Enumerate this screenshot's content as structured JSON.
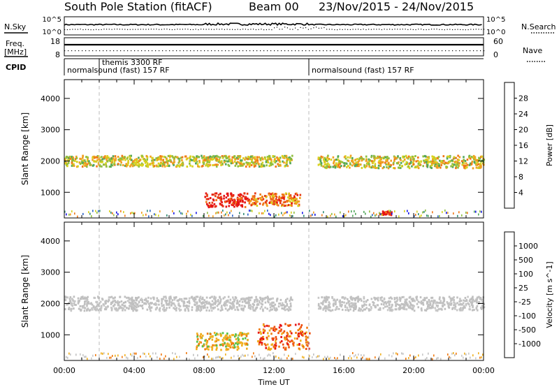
{
  "header": {
    "title": "South Pole Station (fitACF)",
    "beam": "Beam 00",
    "date_range": "23/Nov/2015 - 24/Nov/2015"
  },
  "strip_labels": {
    "n_sky": "N.Sky",
    "n_search": "N.Search",
    "freq_line1": "Freq.",
    "freq_line2": "[MHz]",
    "nave": "Nave",
    "cpid": "CPID"
  },
  "strip_ticks": {
    "noise_top": "10^5",
    "noise_bottom": "10^0",
    "freq_top": "18",
    "freq_bottom": "8",
    "nave_top": "60",
    "nave_bottom": "0"
  },
  "cpid_labels": [
    {
      "text": "themis 3300 RF",
      "start_hour": 2.0,
      "row": 0
    },
    {
      "text": "normalsound (fast) 157 RF",
      "start_hour": 0.0,
      "row": 1
    },
    {
      "text": "normalsound (fast) 157 RF",
      "start_hour": 14.0,
      "row": 1
    }
  ],
  "colors": {
    "power_scale": [
      "#1414e6",
      "#2a62c4",
      "#2f8a73",
      "#52a65a",
      "#8fbf3f",
      "#d7d21e",
      "#f0a020",
      "#f07818",
      "#e63c14",
      "#e61414"
    ],
    "velocity_scale": [
      "#2d3ecf",
      "#2a65b8",
      "#2f8a5a",
      "#55c04a",
      "#c0c0c0",
      "#c8c8c8",
      "#f0b020",
      "#f07a10",
      "#ee5010",
      "#e61414"
    ],
    "grid": "#bbbbbb"
  },
  "chart_data": [
    {
      "type": "heatmap",
      "name": "power-panel",
      "x_range_hours": [
        0,
        24
      ],
      "ylabel": "Slant Range [km]",
      "ylim": [
        180,
        4600
      ],
      "yticks": [
        1000,
        2000,
        3000,
        4000
      ],
      "colorbar": {
        "label": "Power [dB]",
        "ticks": [
          "4",
          "8",
          "12",
          "16",
          "20",
          "24",
          "28"
        ],
        "range": [
          0,
          30
        ]
      },
      "features": [
        {
          "hours": [
            0,
            13
          ],
          "range_km": [
            1850,
            2200
          ],
          "dominant_db": 14
        },
        {
          "hours": [
            14.5,
            24
          ],
          "range_km": [
            1800,
            2200
          ],
          "dominant_db": 14
        },
        {
          "hours": [
            8,
            10.5
          ],
          "range_km": [
            550,
            1000
          ],
          "dominant_db": 27
        },
        {
          "hours": [
            10.5,
            13.5
          ],
          "range_km": [
            600,
            1000
          ],
          "dominant_db": 20
        },
        {
          "hours": [
            18,
            18.7
          ],
          "range_km": [
            300,
            420
          ],
          "dominant_db": 28
        }
      ]
    },
    {
      "type": "heatmap",
      "name": "velocity-panel",
      "x_range_hours": [
        0,
        24
      ],
      "xlabel": "Time UT",
      "xticks": [
        "00:00",
        "04:00",
        "08:00",
        "12:00",
        "16:00",
        "20:00",
        "00:00"
      ],
      "ylabel": "Slant Range [km]",
      "ylim": [
        180,
        4600
      ],
      "yticks": [
        1000,
        2000,
        3000,
        4000
      ],
      "colorbar": {
        "label": "Velocity [m s^-1]",
        "ticks": [
          "1000",
          "500",
          "100",
          "25",
          "-25",
          "-100",
          "-500",
          "-1000"
        ]
      },
      "features": [
        {
          "hours": [
            0,
            13
          ],
          "range_km": [
            1800,
            2250
          ],
          "dominant_velocity": 0
        },
        {
          "hours": [
            14.5,
            24
          ],
          "range_km": [
            1800,
            2250
          ],
          "dominant_velocity": 0
        },
        {
          "hours": [
            7.5,
            10.5
          ],
          "range_km": [
            550,
            1100
          ],
          "dominant_velocity": -200
        },
        {
          "hours": [
            11,
            14
          ],
          "range_km": [
            550,
            1400
          ],
          "dominant_velocity": -600
        }
      ]
    }
  ]
}
